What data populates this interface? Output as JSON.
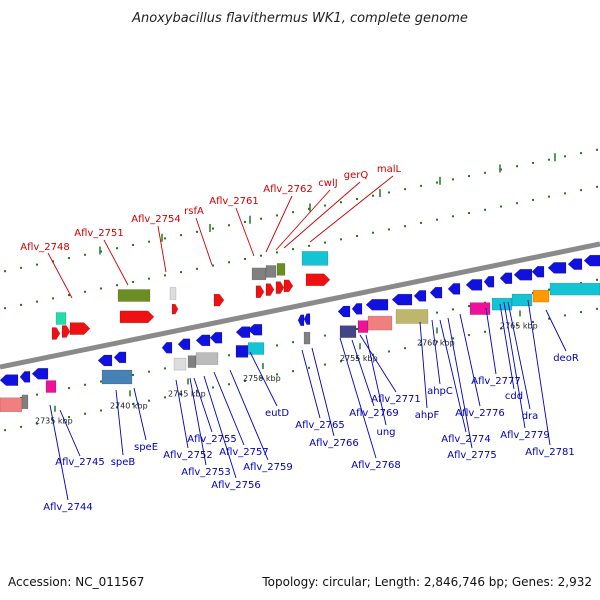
{
  "title": "Anoxybacillus flavithermus WK1, complete genome",
  "accession_text": "Accession: NC_011567",
  "summary_text": "Topology: circular; Length: 2,846,746 bp; Genes: 2,932",
  "colors": {
    "backbone": "#8a8a8a",
    "tick": "#1e7a1e",
    "top_label": "#cc0000",
    "bottom_label": "#0000bb",
    "red": "#ee1111",
    "blue": "#1111dd",
    "olive": "#6b8e23",
    "cyan": "#14c4d4",
    "magenta": "#ee1199",
    "pink": "#f08080",
    "grey": "#808080",
    "khaki": "#bdb76b",
    "orange": "#ff9900",
    "steel": "#4682b4"
  },
  "scale_ticks": [
    {
      "label": "2735 kbp"
    },
    {
      "label": "2740 kbp"
    },
    {
      "label": "2745 kbp"
    },
    {
      "label": "2750 kbp"
    },
    {
      "label": "2755 kbp"
    },
    {
      "label": "2760 kbp"
    },
    {
      "label": "2765 kbp"
    }
  ],
  "top_labels": [
    {
      "text": "Aflv_2748"
    },
    {
      "text": "Aflv_2751"
    },
    {
      "text": "Aflv_2754"
    },
    {
      "text": "rsfA"
    },
    {
      "text": "Aflv_2761"
    },
    {
      "text": "Aflv_2762"
    },
    {
      "text": "cwlJ"
    },
    {
      "text": "gerQ"
    },
    {
      "text": "malL"
    }
  ],
  "bottom_labels": [
    {
      "text": "Aflv_2745"
    },
    {
      "text": "Aflv_2744"
    },
    {
      "text": "speB"
    },
    {
      "text": "speE"
    },
    {
      "text": "Aflv_2752"
    },
    {
      "text": "Aflv_2755"
    },
    {
      "text": "Aflv_2753"
    },
    {
      "text": "Aflv_2757"
    },
    {
      "text": "Aflv_2756"
    },
    {
      "text": "Aflv_2759"
    },
    {
      "text": "eutD"
    },
    {
      "text": "Aflv_2765"
    },
    {
      "text": "Aflv_2766"
    },
    {
      "text": "Aflv_2769"
    },
    {
      "text": "Aflv_2771"
    },
    {
      "text": "ung"
    },
    {
      "text": "Aflv_2768"
    },
    {
      "text": "ahpF"
    },
    {
      "text": "ahpC"
    },
    {
      "text": "Aflv_2774"
    },
    {
      "text": "Aflv_2775"
    },
    {
      "text": "Aflv_2776"
    },
    {
      "text": "Aflv_2777"
    },
    {
      "text": "cdd"
    },
    {
      "text": "dra"
    },
    {
      "text": "Aflv_2779"
    },
    {
      "text": "Aflv_2781"
    },
    {
      "text": "deoR"
    }
  ]
}
